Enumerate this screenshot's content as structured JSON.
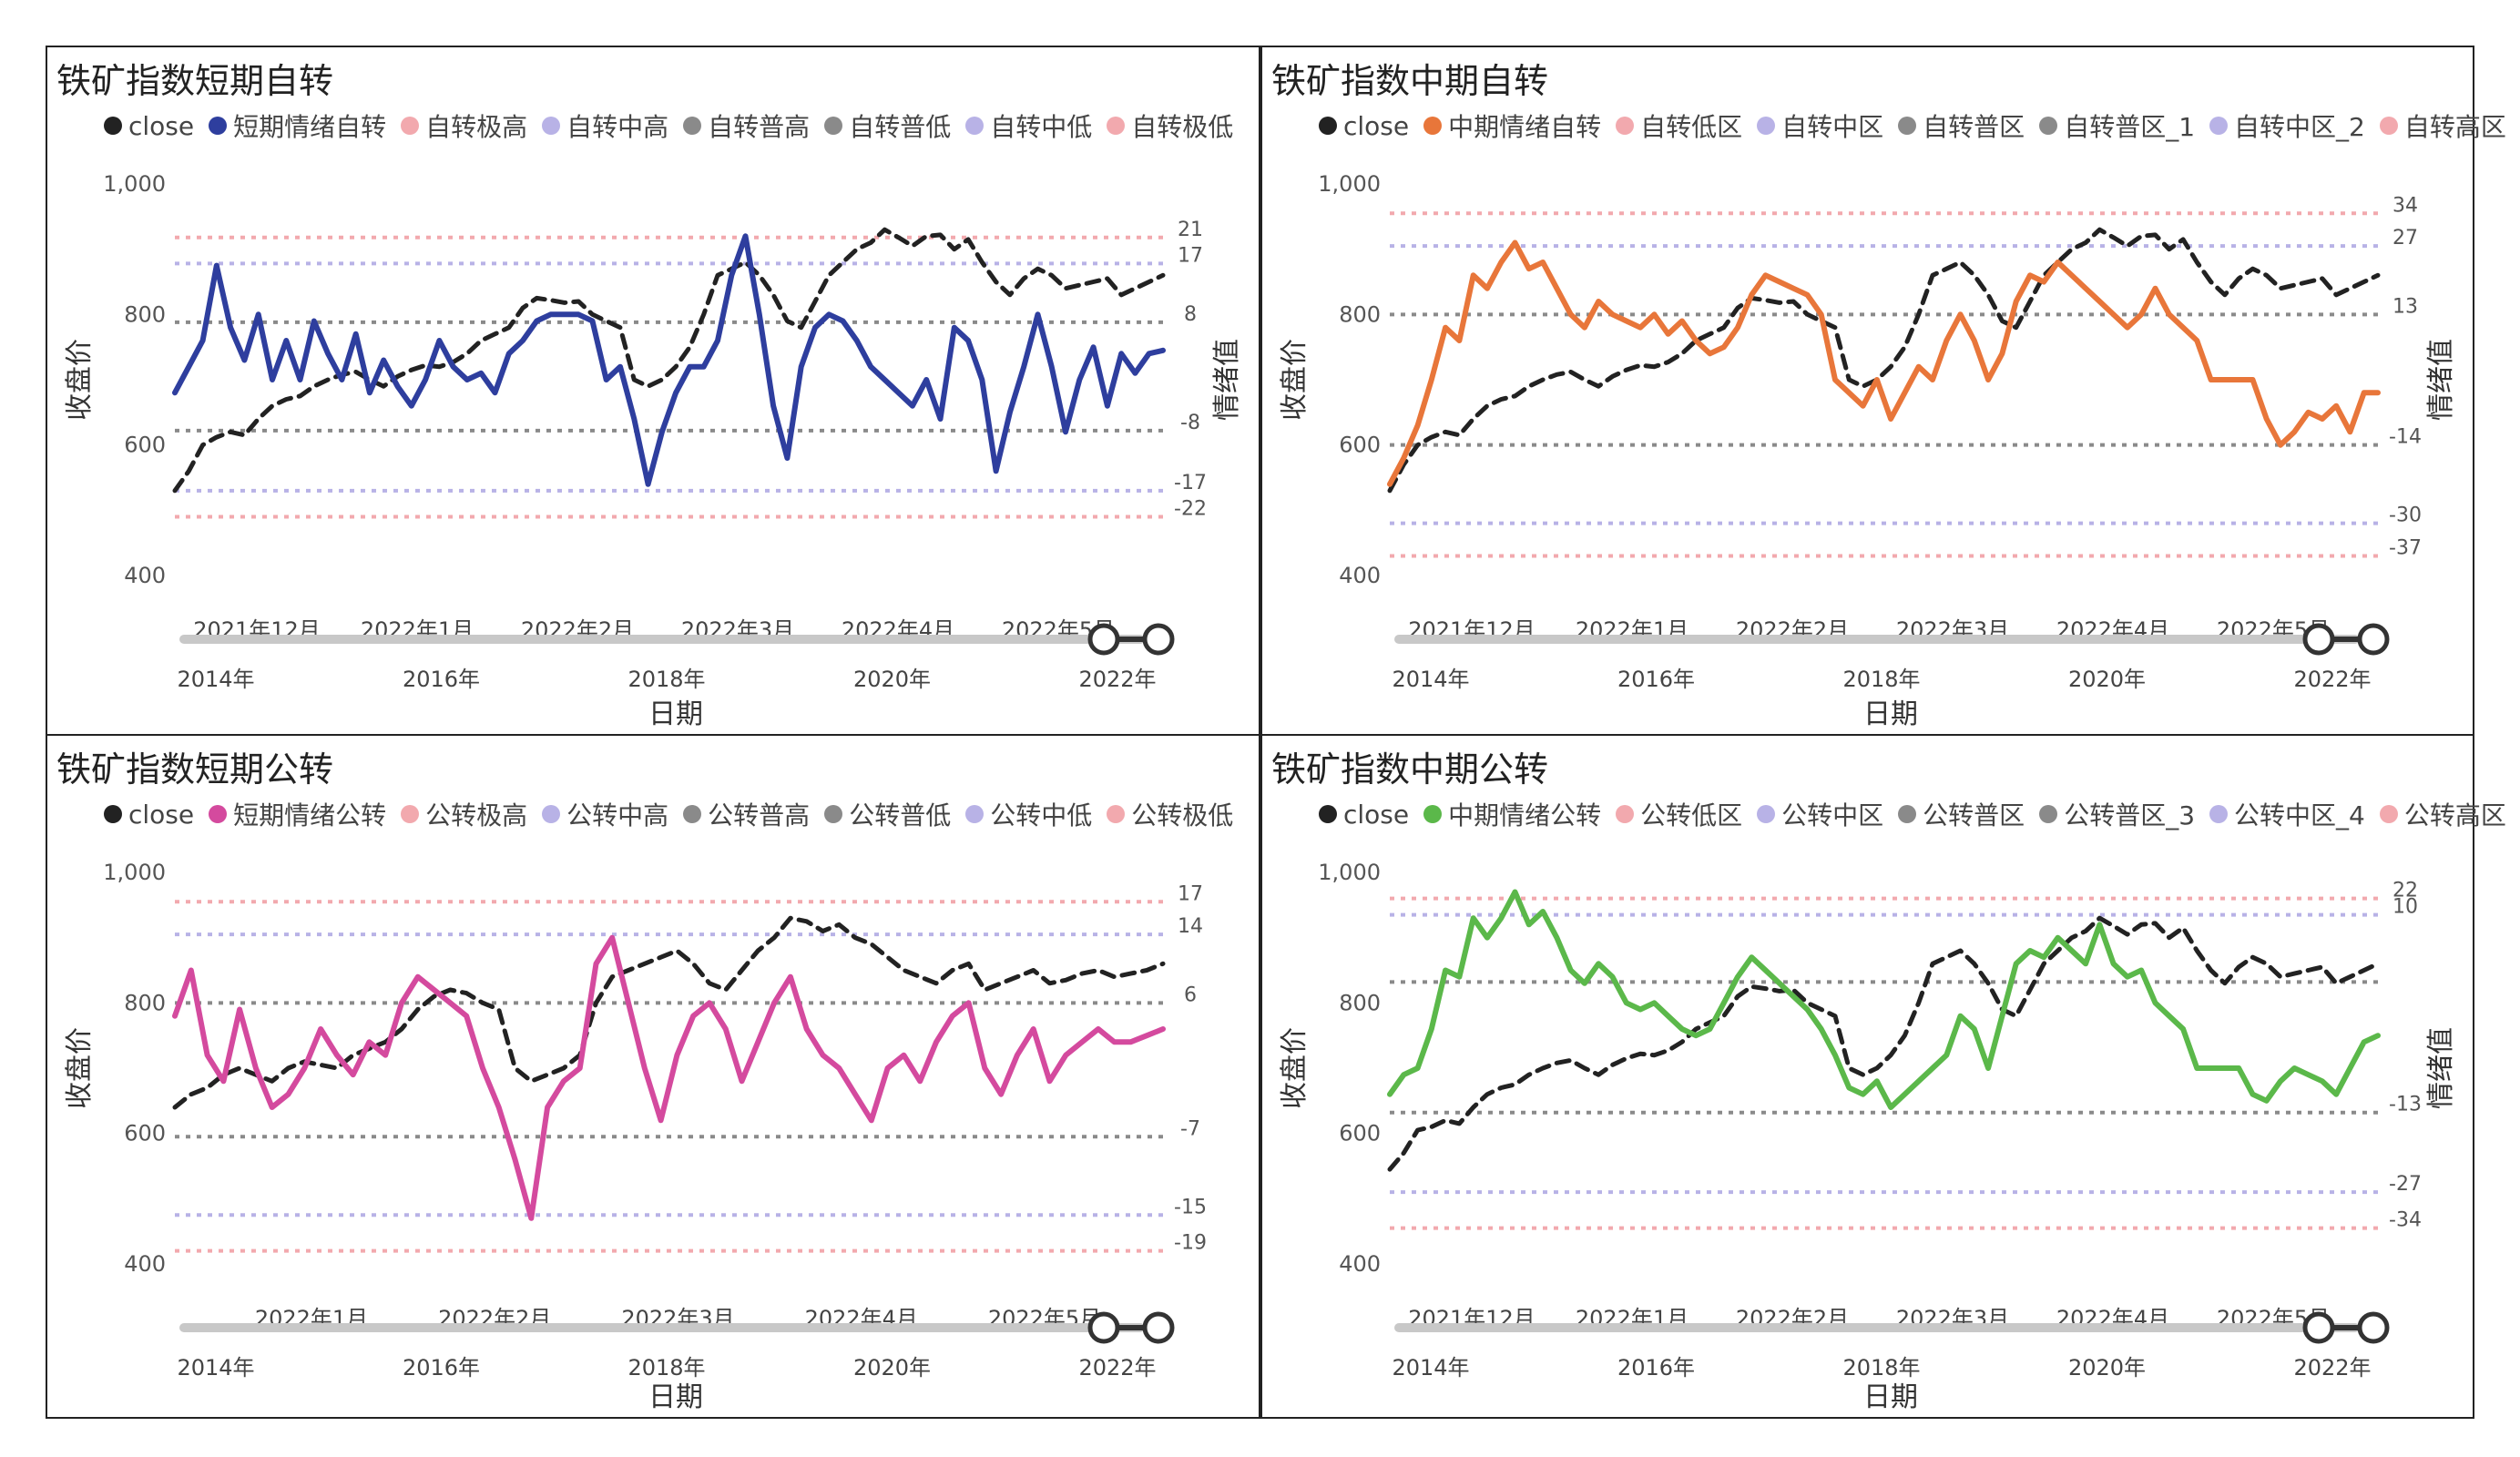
{
  "chart_data": [
    {
      "type": "line",
      "title": "铁矿指数短期自转",
      "ylabel_left": "收盘价",
      "ylabel_right": "情绪值",
      "xlabel": "日期",
      "ylim_left": [
        400,
        1000
      ],
      "left_ticks": [
        "1,000",
        "800",
        "600",
        "400"
      ],
      "x_ticks": [
        "2021年12月",
        "2022年1月",
        "2022年2月",
        "2022年3月",
        "2022年4月",
        "2022年5月"
      ],
      "slider_ticks": [
        "2014年",
        "2016年",
        "2018年",
        "2020年",
        "2022年"
      ],
      "legend": [
        {
          "label": "close",
          "color": "#222222"
        },
        {
          "label": "短期情绪自转",
          "color": "#2e3e9e"
        },
        {
          "label": "自转极高",
          "color": "#f2a9ae"
        },
        {
          "label": "自转中高",
          "color": "#b8b2e6"
        },
        {
          "label": "自转普高",
          "color": "#8a8a8a"
        },
        {
          "label": "自转普低",
          "color": "#8a8a8a"
        },
        {
          "label": "自转中低",
          "color": "#b8b2e6"
        },
        {
          "label": "自转极低",
          "color": "#f2a9ae"
        }
      ],
      "ref_lines": [
        {
          "label": "21",
          "close_value": 918,
          "color": "#f2a9ae"
        },
        {
          "label": "17",
          "close_value": 878,
          "color": "#b8b2e6"
        },
        {
          "label": "8",
          "close_value": 788,
          "color": "#8a8a8a"
        },
        {
          "label": "-8",
          "close_value": 622,
          "color": "#8a8a8a"
        },
        {
          "label": "-17",
          "close_value": 530,
          "color": "#b8b2e6"
        },
        {
          "label": "-22",
          "close_value": 490,
          "color": "#f2a9ae"
        }
      ],
      "series": [
        {
          "name": "close",
          "color": "#222222",
          "dashed": true,
          "values": [
            530,
            560,
            600,
            612,
            620,
            615,
            640,
            660,
            670,
            675,
            690,
            700,
            708,
            712,
            700,
            690,
            705,
            715,
            722,
            720,
            727,
            740,
            760,
            770,
            780,
            810,
            825,
            822,
            818,
            820,
            800,
            790,
            780,
            700,
            690,
            700,
            720,
            750,
            800,
            860,
            870,
            880,
            860,
            830,
            790,
            780,
            820,
            860,
            880,
            900,
            910,
            930,
            918,
            905,
            920,
            922,
            900,
            915,
            880,
            850,
            830,
            855,
            870,
            860,
            840,
            845,
            850,
            855,
            830,
            840,
            850,
            860
          ]
        },
        {
          "name": "短期情绪自转",
          "color": "#2e3e9e",
          "dashed": false,
          "values": [
            680,
            720,
            760,
            875,
            780,
            730,
            800,
            700,
            760,
            700,
            790,
            740,
            700,
            770,
            680,
            730,
            690,
            660,
            700,
            760,
            720,
            700,
            710,
            680,
            740,
            760,
            790,
            800,
            800,
            800,
            790,
            700,
            720,
            640,
            540,
            620,
            680,
            720,
            720,
            760,
            860,
            920,
            800,
            660,
            580,
            720,
            780,
            800,
            790,
            760,
            720,
            700,
            680,
            660,
            700,
            640,
            780,
            760,
            700,
            560,
            650,
            720,
            800,
            720,
            620,
            700,
            750,
            660,
            740,
            710,
            740,
            745
          ]
        }
      ]
    },
    {
      "type": "line",
      "title": "铁矿指数中期自转",
      "ylabel_left": "收盘价",
      "ylabel_right": "情绪值",
      "xlabel": "日期",
      "ylim_left": [
        400,
        1000
      ],
      "left_ticks": [
        "1,000",
        "800",
        "600",
        "400"
      ],
      "x_ticks": [
        "2021年12月",
        "2022年1月",
        "2022年2月",
        "2022年3月",
        "2022年4月",
        "2022年5月"
      ],
      "slider_ticks": [
        "2014年",
        "2016年",
        "2018年",
        "2020年",
        "2022年"
      ],
      "legend": [
        {
          "label": "close",
          "color": "#222222"
        },
        {
          "label": "中期情绪自转",
          "color": "#e8763a"
        },
        {
          "label": "自转低区",
          "color": "#f2a9ae"
        },
        {
          "label": "自转中区",
          "color": "#b8b2e6"
        },
        {
          "label": "自转普区",
          "color": "#8a8a8a"
        },
        {
          "label": "自转普区_1",
          "color": "#8a8a8a"
        },
        {
          "label": "自转中区_2",
          "color": "#b8b2e6"
        },
        {
          "label": "自转高区",
          "color": "#f2a9ae"
        }
      ],
      "ref_lines": [
        {
          "label": "34",
          "close_value": 955,
          "color": "#f2a9ae"
        },
        {
          "label": "27",
          "close_value": 905,
          "color": "#b8b2e6"
        },
        {
          "label": "13",
          "close_value": 800,
          "color": "#8a8a8a"
        },
        {
          "label": "-14",
          "close_value": 600,
          "color": "#8a8a8a"
        },
        {
          "label": "-30",
          "close_value": 480,
          "color": "#b8b2e6"
        },
        {
          "label": "-37",
          "close_value": 430,
          "color": "#f2a9ae"
        }
      ],
      "series": [
        {
          "name": "close",
          "color": "#222222",
          "dashed": true,
          "values": [
            530,
            570,
            600,
            612,
            620,
            615,
            640,
            660,
            670,
            675,
            690,
            700,
            708,
            712,
            700,
            690,
            705,
            715,
            722,
            720,
            727,
            740,
            760,
            770,
            780,
            810,
            825,
            822,
            818,
            820,
            800,
            790,
            780,
            700,
            690,
            700,
            720,
            750,
            800,
            860,
            870,
            880,
            860,
            830,
            790,
            780,
            820,
            860,
            880,
            900,
            910,
            930,
            918,
            905,
            920,
            922,
            900,
            915,
            880,
            850,
            830,
            855,
            870,
            860,
            840,
            845,
            850,
            855,
            830,
            840,
            850,
            860
          ]
        },
        {
          "name": "中期情绪自转",
          "color": "#e8763a",
          "dashed": false,
          "values": [
            540,
            580,
            630,
            700,
            780,
            760,
            860,
            840,
            880,
            910,
            870,
            880,
            840,
            800,
            780,
            820,
            800,
            790,
            780,
            800,
            770,
            790,
            760,
            740,
            750,
            780,
            830,
            860,
            850,
            840,
            830,
            800,
            700,
            680,
            660,
            700,
            640,
            680,
            720,
            700,
            760,
            800,
            760,
            700,
            740,
            820,
            860,
            850,
            880,
            860,
            840,
            820,
            800,
            780,
            800,
            840,
            800,
            780,
            760,
            700,
            700,
            700,
            700,
            640,
            600,
            620,
            650,
            640,
            660,
            620,
            680,
            680
          ]
        }
      ]
    },
    {
      "type": "line",
      "title": "铁矿指数短期公转",
      "ylabel_left": "收盘价",
      "ylabel_right": "",
      "xlabel": "日期",
      "ylim_left": [
        400,
        1000
      ],
      "left_ticks": [
        "1,000",
        "800",
        "600",
        "400"
      ],
      "x_ticks": [
        "2022年1月",
        "2022年2月",
        "2022年3月",
        "2022年4月",
        "2022年5月"
      ],
      "slider_ticks": [
        "2014年",
        "2016年",
        "2018年",
        "2020年",
        "2022年"
      ],
      "legend": [
        {
          "label": "close",
          "color": "#222222"
        },
        {
          "label": "短期情绪公转",
          "color": "#d44a9e"
        },
        {
          "label": "公转极高",
          "color": "#f2a9ae"
        },
        {
          "label": "公转中高",
          "color": "#b8b2e6"
        },
        {
          "label": "公转普高",
          "color": "#8a8a8a"
        },
        {
          "label": "公转普低",
          "color": "#8a8a8a"
        },
        {
          "label": "公转中低",
          "color": "#b8b2e6"
        },
        {
          "label": "公转极低",
          "color": "#f2a9ae"
        }
      ],
      "ref_lines": [
        {
          "label": "17",
          "close_value": 955,
          "color": "#f2a9ae"
        },
        {
          "label": "14",
          "close_value": 905,
          "color": "#b8b2e6"
        },
        {
          "label": "6",
          "close_value": 800,
          "color": "#8a8a8a"
        },
        {
          "label": "-7",
          "close_value": 595,
          "color": "#8a8a8a"
        },
        {
          "label": "-15",
          "close_value": 475,
          "color": "#b8b2e6"
        },
        {
          "label": "-19",
          "close_value": 420,
          "color": "#f2a9ae"
        }
      ],
      "series": [
        {
          "name": "close",
          "color": "#222222",
          "dashed": true,
          "values": [
            640,
            660,
            670,
            690,
            700,
            690,
            680,
            700,
            710,
            705,
            700,
            720,
            730,
            740,
            760,
            790,
            810,
            820,
            815,
            800,
            790,
            700,
            680,
            690,
            700,
            720,
            800,
            840,
            850,
            860,
            870,
            880,
            860,
            830,
            820,
            850,
            880,
            900,
            930,
            925,
            910,
            920,
            900,
            890,
            870,
            850,
            840,
            830,
            850,
            860,
            820,
            830,
            840,
            850,
            830,
            835,
            845,
            850,
            840,
            845,
            850,
            860
          ]
        },
        {
          "name": "短期情绪公转",
          "color": "#d44a9e",
          "dashed": false,
          "values": [
            780,
            850,
            720,
            680,
            790,
            700,
            640,
            660,
            700,
            760,
            720,
            690,
            740,
            720,
            800,
            840,
            820,
            800,
            780,
            700,
            640,
            560,
            470,
            640,
            680,
            700,
            860,
            900,
            800,
            700,
            620,
            720,
            780,
            800,
            760,
            680,
            740,
            800,
            840,
            760,
            720,
            700,
            660,
            620,
            700,
            720,
            680,
            740,
            780,
            800,
            700,
            660,
            720,
            760,
            680,
            720,
            740,
            760,
            740,
            740,
            750,
            760
          ]
        }
      ]
    },
    {
      "type": "line",
      "title": "铁矿指数中期公转",
      "ylabel_left": "收盘价",
      "ylabel_right": "情绪值",
      "xlabel": "日期",
      "ylim_left": [
        400,
        1000
      ],
      "left_ticks": [
        "1,000",
        "800",
        "600",
        "400"
      ],
      "x_ticks": [
        "2021年12月",
        "2022年1月",
        "2022年2月",
        "2022年3月",
        "2022年4月",
        "2022年5月"
      ],
      "slider_ticks": [
        "2014年",
        "2016年",
        "2018年",
        "2020年",
        "2022年"
      ],
      "legend": [
        {
          "label": "close",
          "color": "#222222"
        },
        {
          "label": "中期情绪公转",
          "color": "#5bb84a"
        },
        {
          "label": "公转低区",
          "color": "#f2a9ae"
        },
        {
          "label": "公转中区",
          "color": "#b8b2e6"
        },
        {
          "label": "公转普区",
          "color": "#8a8a8a"
        },
        {
          "label": "公转普区_3",
          "color": "#8a8a8a"
        },
        {
          "label": "公转中区_4",
          "color": "#b8b2e6"
        },
        {
          "label": "公转高区",
          "color": "#f2a9ae"
        }
      ],
      "ref_lines": [
        {
          "label": "22",
          "close_value": 960,
          "color": "#f2a9ae"
        },
        {
          "label": "10",
          "close_value": 935,
          "color": "#b8b2e6"
        },
        {
          "label": "",
          "close_value": 832,
          "color": "#8a8a8a"
        },
        {
          "label": "-13",
          "close_value": 632,
          "color": "#8a8a8a"
        },
        {
          "label": "-27",
          "close_value": 510,
          "color": "#b8b2e6"
        },
        {
          "label": "-34",
          "close_value": 455,
          "color": "#f2a9ae"
        }
      ],
      "series": [
        {
          "name": "close",
          "color": "#222222",
          "dashed": true,
          "values": [
            545,
            570,
            605,
            610,
            620,
            615,
            640,
            660,
            670,
            675,
            690,
            700,
            708,
            712,
            700,
            690,
            705,
            715,
            722,
            720,
            727,
            740,
            760,
            770,
            780,
            810,
            825,
            822,
            818,
            820,
            800,
            790,
            780,
            700,
            690,
            700,
            720,
            750,
            800,
            860,
            870,
            880,
            860,
            830,
            790,
            780,
            820,
            860,
            880,
            900,
            910,
            930,
            918,
            905,
            920,
            922,
            900,
            915,
            880,
            850,
            830,
            855,
            870,
            860,
            840,
            845,
            850,
            855,
            830,
            840,
            850,
            860
          ]
        },
        {
          "name": "中期情绪公转",
          "color": "#5bb84a",
          "dashed": false,
          "values": [
            660,
            690,
            700,
            760,
            850,
            840,
            930,
            900,
            930,
            970,
            920,
            940,
            900,
            850,
            830,
            860,
            840,
            800,
            790,
            800,
            780,
            760,
            750,
            760,
            800,
            840,
            870,
            850,
            830,
            810,
            790,
            760,
            720,
            670,
            660,
            680,
            640,
            660,
            680,
            700,
            720,
            780,
            760,
            700,
            780,
            860,
            880,
            870,
            900,
            880,
            860,
            920,
            860,
            840,
            850,
            800,
            780,
            760,
            700,
            700,
            700,
            700,
            660,
            650,
            680,
            700,
            690,
            680,
            660,
            700,
            740,
            750
          ]
        }
      ]
    }
  ]
}
